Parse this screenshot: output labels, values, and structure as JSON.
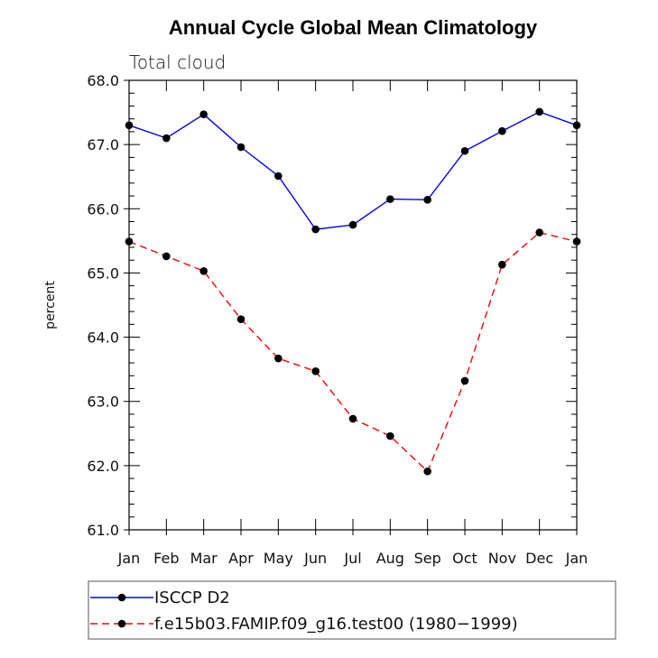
{
  "chart_data": {
    "type": "line",
    "title": "Annual Cycle Global Mean Climatology",
    "subtitle": "Total cloud",
    "xlabel": "",
    "ylabel": "percent",
    "ylim": [
      61.0,
      68.0
    ],
    "y_ticks": [
      "61.0",
      "62.0",
      "63.0",
      "64.0",
      "65.0",
      "66.0",
      "67.0",
      "68.0"
    ],
    "categories": [
      "Jan",
      "Feb",
      "Mar",
      "Apr",
      "May",
      "Jun",
      "Jul",
      "Aug",
      "Sep",
      "Oct",
      "Nov",
      "Dec",
      "Jan"
    ],
    "grid": false,
    "legend_position": "bottom",
    "series": [
      {
        "name": "ISCCP D2",
        "color": "#0000ff",
        "line_style": "solid",
        "marker": "filled-circle",
        "values": [
          67.3,
          67.1,
          67.47,
          66.96,
          66.51,
          65.68,
          65.75,
          66.15,
          66.14,
          66.9,
          67.21,
          67.51,
          67.3
        ]
      },
      {
        "name": "f.e15b03.FAMIP.f09_g16.test00 (1980−1999)",
        "color": "#ff0000",
        "line_style": "dashed",
        "marker": "filled-circle",
        "values": [
          65.49,
          65.26,
          65.03,
          64.28,
          63.67,
          63.47,
          62.73,
          62.46,
          61.91,
          63.32,
          65.13,
          65.63,
          65.49
        ]
      }
    ]
  }
}
